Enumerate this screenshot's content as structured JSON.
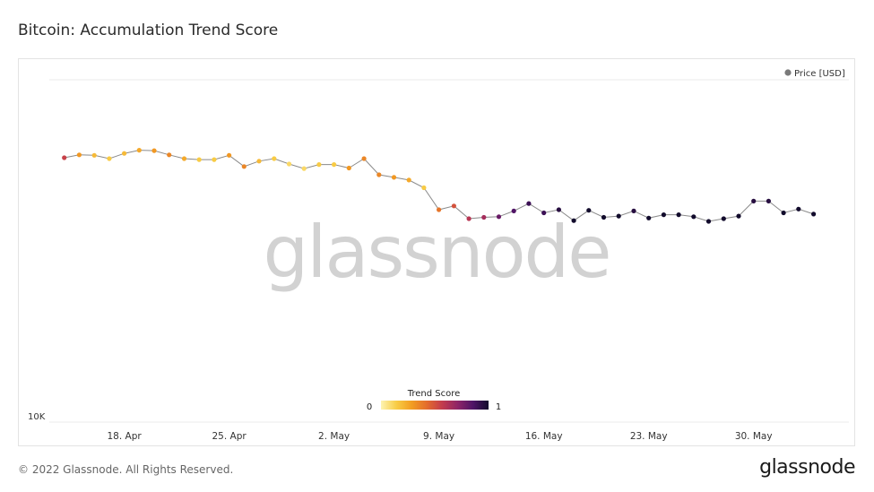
{
  "title": "Bitcoin: Accumulation Trend Score",
  "footer": {
    "copyright": "© 2022 Glassnode. All Rights Reserved.",
    "brand": "glassnode"
  },
  "watermark": "glassnode",
  "colors": {
    "line": "#8a8a8a",
    "legend_dot": "#7a7a7a",
    "gridline": "#ebebeb",
    "gradient": [
      "#fdf3b1",
      "#f8cd46",
      "#f29d22",
      "#e36b2c",
      "#c23b4e",
      "#8e2467",
      "#4e1466",
      "#120b2c"
    ]
  },
  "chart_data": {
    "type": "line",
    "legend": {
      "series_label": "Price [USD]",
      "placement": "top-right"
    },
    "x_ticks": [
      "18. Apr",
      "25. Apr",
      "2. May",
      "9. May",
      "16. May",
      "23. May",
      "30. May"
    ],
    "y_ticks": [
      "10K"
    ],
    "y_scale": "log",
    "ylim": [
      10000,
      60000
    ],
    "xlim": [
      "2022-04-13",
      "2022-06-05"
    ],
    "color_scale": {
      "title": "Trend Score",
      "min_label": "0",
      "max_label": "1",
      "range": [
        0,
        1
      ]
    },
    "series": [
      {
        "dates": [
          "2022-04-14",
          "2022-04-15",
          "2022-04-16",
          "2022-04-17",
          "2022-04-18",
          "2022-04-19",
          "2022-04-20",
          "2022-04-21",
          "2022-04-22",
          "2022-04-23",
          "2022-04-24",
          "2022-04-25",
          "2022-04-26",
          "2022-04-27",
          "2022-04-28",
          "2022-04-29",
          "2022-04-30",
          "2022-05-01",
          "2022-05-02",
          "2022-05-03",
          "2022-05-04",
          "2022-05-05",
          "2022-05-06",
          "2022-05-07",
          "2022-05-08",
          "2022-05-09",
          "2022-05-10",
          "2022-05-11",
          "2022-05-12",
          "2022-05-13",
          "2022-05-14",
          "2022-05-15",
          "2022-05-16",
          "2022-05-17",
          "2022-05-18",
          "2022-05-19",
          "2022-05-20",
          "2022-05-21",
          "2022-05-22",
          "2022-05-23",
          "2022-05-24",
          "2022-05-25",
          "2022-05-26",
          "2022-05-27",
          "2022-05-28",
          "2022-05-29",
          "2022-05-30",
          "2022-05-31",
          "2022-06-01",
          "2022-06-02",
          "2022-06-03"
        ],
        "values": [
          39900,
          40500,
          40400,
          39700,
          40800,
          41500,
          41400,
          40500,
          39700,
          39500,
          39500,
          40400,
          38100,
          39200,
          39700,
          38600,
          37700,
          38500,
          38500,
          37800,
          39700,
          36500,
          36000,
          35500,
          34100,
          30400,
          31000,
          29000,
          29200,
          29300,
          30200,
          31400,
          29900,
          30400,
          28700,
          30300,
          29200,
          29400,
          30200,
          29100,
          29600,
          29600,
          29300,
          28600,
          29000,
          29400,
          31800,
          31800,
          29900,
          30500,
          29700
        ],
        "trend_scores": [
          0.55,
          0.3,
          0.2,
          0.15,
          0.2,
          0.25,
          0.3,
          0.35,
          0.25,
          0.15,
          0.15,
          0.3,
          0.35,
          0.2,
          0.15,
          0.1,
          0.1,
          0.15,
          0.15,
          0.3,
          0.35,
          0.35,
          0.3,
          0.25,
          0.15,
          0.4,
          0.5,
          0.6,
          0.65,
          0.8,
          0.85,
          0.9,
          0.9,
          0.95,
          1.0,
          1.0,
          1.0,
          1.0,
          0.95,
          1.0,
          1.0,
          1.0,
          1.0,
          1.0,
          1.0,
          1.0,
          0.95,
          0.95,
          1.0,
          1.0,
          1.0
        ]
      }
    ]
  }
}
